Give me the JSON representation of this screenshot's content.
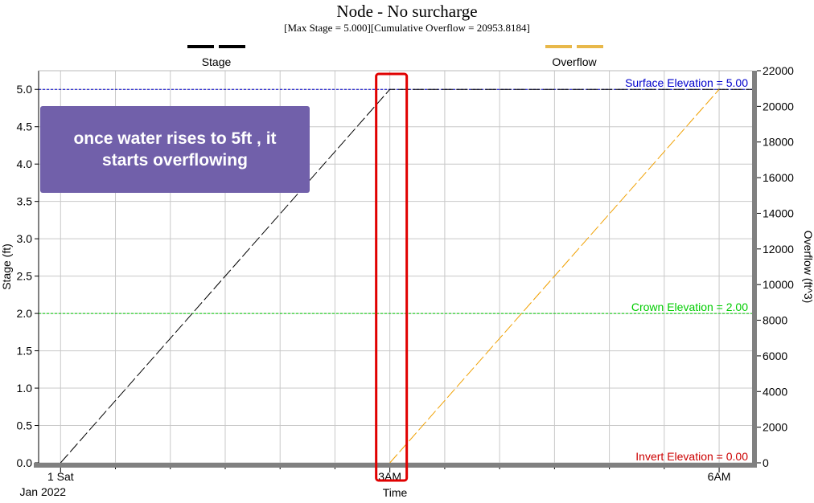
{
  "chart_data": {
    "type": "line",
    "title": "Node - No surcharge",
    "subtitle": "[Max  Stage = 5.000][Cumulative Overflow = 20953.8184]",
    "xlabel": "Time",
    "ylabel": "Stage (ft)",
    "y2label": "Overflow (ft^3)",
    "x_ticks": [
      {
        "hour": 0,
        "label": "1 Sat",
        "sublabel": "Jan 2022"
      },
      {
        "hour": 3,
        "label": "3AM",
        "sublabel": ""
      },
      {
        "hour": 6,
        "label": "6AM",
        "sublabel": ""
      }
    ],
    "xlim_hours": [
      -0.2,
      6.3
    ],
    "ylim": [
      0,
      5.25
    ],
    "y2lim": [
      0,
      22000
    ],
    "y_ticks": [
      0.0,
      0.5,
      1.0,
      1.5,
      2.0,
      2.5,
      3.0,
      3.5,
      4.0,
      4.5,
      5.0
    ],
    "y2_ticks": [
      0,
      2000,
      4000,
      6000,
      8000,
      10000,
      12000,
      14000,
      16000,
      18000,
      20000,
      22000
    ],
    "grid": true,
    "series": [
      {
        "name": "Stage",
        "axis": "left",
        "color": "#000000",
        "x_hours": [
          0,
          3.0,
          6.3
        ],
        "values": [
          0,
          5.0,
          5.0
        ]
      },
      {
        "name": "Overflow",
        "axis": "right",
        "color": "#f0a000",
        "x_hours": [
          3.0,
          6.0
        ],
        "values": [
          0,
          20953.8184
        ]
      }
    ],
    "legend": [
      {
        "name": "Stage",
        "color": "#000000",
        "placement": "top-left"
      },
      {
        "name": "Overflow",
        "color": "#e8b84a",
        "placement": "top-right"
      }
    ],
    "reference_lines": [
      {
        "label": "Surface Elevation = 5.00",
        "value": 5.0,
        "color": "#0000cc"
      },
      {
        "label": "Crown Elevation = 2.00",
        "value": 2.0,
        "color": "#00cc00"
      },
      {
        "label": "Invert Elevation = 0.00",
        "value": 0.0,
        "color": "#cc0000"
      }
    ],
    "highlight": {
      "hour": 3.0,
      "color": "#e00000"
    },
    "annotation": "once water rises to 5ft , it\nstarts overflowing"
  }
}
